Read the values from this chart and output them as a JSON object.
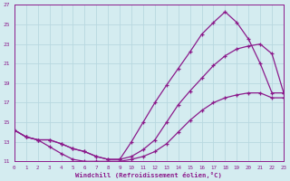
{
  "xlabel": "Windchill (Refroidissement éolien,°C)",
  "xlim": [
    0,
    23
  ],
  "ylim": [
    11,
    27
  ],
  "xticks": [
    0,
    1,
    2,
    3,
    4,
    5,
    6,
    7,
    8,
    9,
    10,
    11,
    12,
    13,
    14,
    15,
    16,
    17,
    18,
    19,
    20,
    21,
    22,
    23
  ],
  "yticks": [
    11,
    13,
    15,
    17,
    19,
    21,
    23,
    25,
    27
  ],
  "bg_color": "#d4ecf0",
  "grid_color": "#b8d8e0",
  "line_color": "#8b1a8b",
  "curve1_x": [
    0,
    1,
    2,
    3,
    4,
    5,
    6,
    7,
    8,
    9,
    10,
    11,
    12,
    13,
    14,
    15,
    16,
    17,
    18,
    19,
    20,
    21,
    22,
    23
  ],
  "curve1_y": [
    14.2,
    13.5,
    13.2,
    13.2,
    12.8,
    12.3,
    12.0,
    11.5,
    11.2,
    11.2,
    11.5,
    12.2,
    13.2,
    15.0,
    16.8,
    18.2,
    19.5,
    20.8,
    21.8,
    22.5,
    22.8,
    23.0,
    22.0,
    18.0
  ],
  "curve2_x": [
    0,
    1,
    2,
    3,
    4,
    5,
    6,
    7,
    8,
    9,
    10,
    11,
    12,
    13,
    14,
    15,
    16,
    17,
    18,
    19,
    20,
    21,
    22,
    23
  ],
  "curve2_y": [
    14.2,
    13.5,
    13.2,
    13.2,
    12.8,
    12.3,
    12.0,
    11.5,
    11.2,
    11.2,
    13.0,
    15.0,
    17.0,
    18.8,
    20.5,
    22.2,
    24.0,
    25.2,
    26.3,
    25.2,
    23.5,
    21.0,
    18.0,
    18.0
  ],
  "curve3_x": [
    0,
    1,
    2,
    3,
    4,
    5,
    6,
    7,
    8,
    9,
    10,
    11,
    12,
    13,
    14,
    15,
    16,
    17,
    18,
    19,
    20,
    21,
    22,
    23
  ],
  "curve3_y": [
    14.2,
    13.5,
    13.2,
    12.5,
    11.8,
    11.2,
    11.0,
    11.0,
    11.0,
    11.0,
    11.2,
    11.5,
    12.0,
    12.8,
    14.0,
    15.2,
    16.2,
    17.0,
    17.5,
    17.8,
    18.0,
    18.0,
    17.5,
    17.5
  ]
}
